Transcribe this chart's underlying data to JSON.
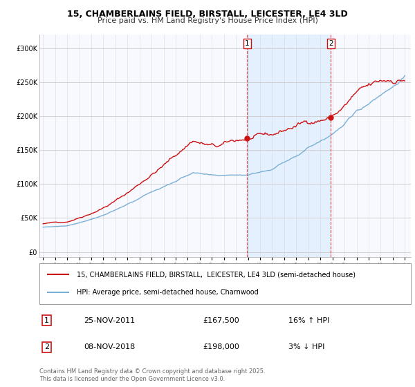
{
  "title_line1": "15, CHAMBERLAINS FIELD, BIRSTALL, LEICESTER, LE4 3LD",
  "title_line2": "Price paid vs. HM Land Registry's House Price Index (HPI)",
  "background_color": "#ffffff",
  "plot_bg_color": "#f8f8ff",
  "grid_color": "#dddddd",
  "red_line_label": "15, CHAMBERLAINS FIELD, BIRSTALL,  LEICESTER, LE4 3LD (semi-detached house)",
  "blue_line_label": "HPI: Average price, semi-detached house, Charnwood",
  "annotation1_date": "25-NOV-2011",
  "annotation1_price": "£167,500",
  "annotation1_hpi": "16% ↑ HPI",
  "annotation2_date": "08-NOV-2018",
  "annotation2_price": "£198,000",
  "annotation2_hpi": "3% ↓ HPI",
  "footer": "Contains HM Land Registry data © Crown copyright and database right 2025.\nThis data is licensed under the Open Government Licence v3.0.",
  "yticks": [
    0,
    50000,
    100000,
    150000,
    200000,
    250000,
    300000
  ],
  "ytick_labels": [
    "£0",
    "£50K",
    "£100K",
    "£150K",
    "£200K",
    "£250K",
    "£300K"
  ],
  "ylim": [
    -8000,
    320000
  ],
  "xmin": 1994.7,
  "xmax": 2025.5,
  "red_color": "#cc1111",
  "blue_color": "#7ab0d4",
  "shade_color": "#ddeeff",
  "ann_line_color": "#dd4444",
  "t_ann1": 2011.92,
  "t_ann2": 2018.87,
  "sale1_price": 167500,
  "sale2_price": 198000
}
